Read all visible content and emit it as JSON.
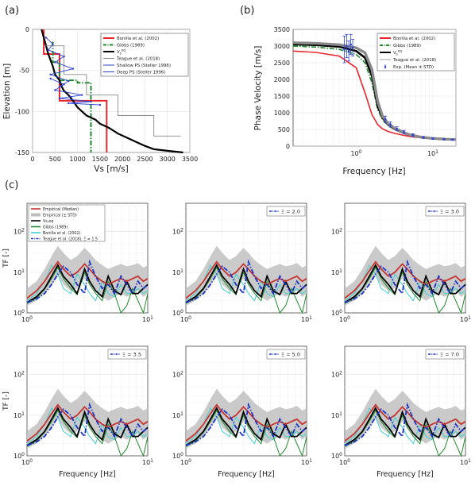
{
  "chart_data": [
    {
      "panel": "(a)",
      "type": "line",
      "xlabel": "Vs [m/s]",
      "ylabel": "Elevation [m]",
      "xlim": [
        0,
        3500
      ],
      "ylim": [
        -150,
        0
      ],
      "xticks": [
        0,
        500,
        1000,
        1500,
        2000,
        2500,
        3000,
        3500
      ],
      "yticks": [
        0,
        -50,
        -100,
        -150
      ],
      "grid": true,
      "legend_position": "top-right",
      "series": [
        {
          "name": "Bonilla et al. (2002)",
          "color": "#e8262b",
          "x": [
            250,
            250,
            600,
            600,
            1300,
            1300,
            1650,
            1650
          ],
          "y": [
            0,
            -30,
            -30,
            -87,
            -87,
            -87,
            -87,
            -150
          ]
        },
        {
          "name": "Gibbs (1989)",
          "color": "#1f8a2e",
          "style": "dashdot",
          "x": [
            450,
            450,
            600,
            600,
            1000,
            1000,
            1300,
            1300
          ],
          "y": [
            -15,
            -40,
            -40,
            -62,
            -62,
            -65,
            -65,
            -150
          ]
        },
        {
          "name": "Vs,eq",
          "color": "#000000",
          "x": [
            200,
            250,
            300,
            350,
            450,
            500,
            600,
            650,
            700,
            800,
            900,
            1000,
            1100,
            1200,
            1400,
            1500,
            1700,
            1900,
            2100,
            2300,
            2500,
            2700,
            3000,
            3350
          ],
          "y": [
            0,
            -10,
            -20,
            -30,
            -45,
            -55,
            -62,
            -70,
            -75,
            -80,
            -87,
            -95,
            -100,
            -105,
            -110,
            -115,
            -120,
            -127,
            -132,
            -137,
            -142,
            -146,
            -148,
            -150
          ]
        },
        {
          "name": "Teague et al. (2018)",
          "color": "#8a8a8a",
          "x": [
            250,
            700,
            700,
            1200,
            1200,
            1900,
            1900,
            2700,
            2700,
            3300
          ],
          "y": [
            -20,
            -20,
            -55,
            -55,
            -80,
            -80,
            -105,
            -105,
            -130,
            -130
          ]
        },
        {
          "name": "Shallow PS (Steller 1996)",
          "color": "#2b3fd1",
          "x": [
            300,
            450,
            350,
            700,
            500,
            900,
            400,
            800,
            600
          ],
          "y": [
            -10,
            -18,
            -25,
            -33,
            -40,
            -48,
            -55,
            -63,
            -70
          ]
        },
        {
          "name": "Deep PS (Steller 1996)",
          "color": "#2b3fd1",
          "x": [
            400,
            700,
            500,
            1100,
            600,
            1300,
            800,
            1500
          ],
          "y": [
            -60,
            -67,
            -74,
            -80,
            -84,
            -88,
            -90,
            -92
          ]
        }
      ]
    },
    {
      "panel": "(b)",
      "type": "line",
      "xlabel": "Frequency [Hz]",
      "ylabel": "Phase Velocity [m/s]",
      "xscale": "log",
      "xlim": [
        0.15,
        20
      ],
      "ylim": [
        0,
        3500
      ],
      "xticks": [
        1,
        10
      ],
      "xticklabels": [
        "10^0",
        "10^1"
      ],
      "yticks": [
        0,
        500,
        1000,
        1500,
        2000,
        2500,
        3000,
        3500
      ],
      "grid": true,
      "legend_position": "top-right",
      "x": [
        0.15,
        0.3,
        0.6,
        1.0,
        1.3,
        1.6,
        1.9,
        2.2,
        2.6,
        3.2,
        4.0,
        5.0,
        7.0,
        10.0,
        15.0,
        20.0
      ],
      "series": [
        {
          "name": "Bonilla et al. (2002)",
          "color": "#e8262b",
          "y": [
            2850,
            2810,
            2700,
            2350,
            1600,
            950,
            650,
            520,
            440,
            380,
            330,
            290,
            250,
            220,
            200,
            190
          ]
        },
        {
          "name": "Gibbs (1989)",
          "color": "#1f8a2e",
          "style": "dashdot",
          "y": [
            3000,
            2970,
            2900,
            2750,
            2500,
            1900,
            1100,
            800,
            620,
            490,
            400,
            320,
            260,
            225,
            205,
            195
          ]
        },
        {
          "name": "Vs,eq",
          "color": "#000000",
          "y": [
            3050,
            3030,
            2980,
            2850,
            2650,
            2100,
            1200,
            850,
            650,
            510,
            410,
            330,
            265,
            228,
            207,
            197
          ]
        },
        {
          "name": "Teague et al. (2018)",
          "color": "#8a8a8a",
          "y": [
            3100,
            3080,
            3040,
            2950,
            2800,
            2300,
            1350,
            900,
            680,
            530,
            425,
            340,
            270,
            230,
            208,
            198
          ]
        },
        {
          "name": "Exp. (Mean ± STD)",
          "color": "#2b3fd1",
          "marker": "errorbar",
          "x": [
            0.7,
            0.75,
            0.8,
            0.85,
            0.9,
            2.4,
            2.8,
            3.4,
            4.2,
            5.5,
            7.5,
            10,
            14,
            18
          ],
          "y": [
            2900,
            3000,
            2850,
            3050,
            2950,
            800,
            650,
            520,
            420,
            330,
            260,
            225,
            205,
            195
          ],
          "err": [
            400,
            350,
            300,
            300,
            250,
            100,
            80,
            60,
            50,
            40,
            30,
            20,
            15,
            10
          ]
        }
      ]
    },
    {
      "panel": "(c)",
      "type": "line",
      "xlabel": "Frequency [Hz]",
      "ylabel": "TF [-]",
      "xscale": "log",
      "yscale": "log",
      "xlim": [
        1,
        10
      ],
      "ylim": [
        1,
        500
      ],
      "xticklabels": [
        "10^0",
        "10^1"
      ],
      "yticklabels": [
        "10^0",
        "10^1",
        "10^2"
      ],
      "grid": true,
      "legend_entries": [
        "Empirical (Median)",
        "Empirical (± STD)",
        "Vs,eq",
        "Gibbs (1989)",
        "Bonilla et al. (2002)",
        "Teague et al. (2018), Ξ = 1.5"
      ],
      "subplots": [
        {
          "xi_label": "Ξ = 1.5",
          "show_full_legend": true
        },
        {
          "xi_label": "Ξ = 2.0"
        },
        {
          "xi_label": "Ξ = 3.0"
        },
        {
          "xi_label": "Ξ = 3.5"
        },
        {
          "xi_label": "Ξ = 5.0"
        },
        {
          "xi_label": "Ξ = 7.0"
        }
      ],
      "x": [
        1.0,
        1.2,
        1.4,
        1.6,
        1.8,
        2.0,
        2.3,
        2.6,
        3.0,
        3.3,
        3.7,
        4.2,
        4.7,
        5.3,
        6.0,
        6.7,
        7.5,
        8.3,
        9.2,
        10.0
      ],
      "series": [
        {
          "name": "Empirical (Median)",
          "color": "#c8342e",
          "y": [
            2.3,
            3.5,
            6,
            11,
            18,
            12,
            8,
            10,
            16,
            12,
            8,
            6,
            5,
            6,
            7,
            6,
            7,
            8,
            6,
            7
          ]
        },
        {
          "name": "Empirical upper (± STD)",
          "color": "#bdbdbd",
          "y": [
            4,
            6,
            12,
            25,
            45,
            30,
            20,
            25,
            40,
            30,
            20,
            15,
            12,
            14,
            16,
            14,
            15,
            17,
            13,
            15
          ]
        },
        {
          "name": "Empirical lower (± STD)",
          "color": "#bdbdbd",
          "y": [
            1.5,
            2,
            3,
            5,
            8,
            5,
            3.5,
            4,
            7,
            5,
            3.5,
            2.5,
            2,
            2.5,
            3,
            2.5,
            3,
            3.5,
            2.5,
            3
          ]
        },
        {
          "name": "Vs,eq",
          "color": "#000000",
          "y": [
            1.8,
            2.5,
            4,
            8,
            15,
            8,
            5,
            3,
            12,
            6,
            3.5,
            2.5,
            8,
            3.5,
            2.8,
            6,
            3,
            3,
            4,
            5
          ]
        },
        {
          "name": "Gibbs (1989)",
          "color": "#1f8a2e",
          "y": [
            1.7,
            2.3,
            3.8,
            7,
            13,
            7,
            4,
            2.8,
            10,
            5,
            3,
            2,
            6,
            3,
            0.6,
            1.5,
            4,
            2,
            0.9,
            3
          ]
        },
        {
          "name": "Bonilla et al. (2002)",
          "color": "#3fd0d0",
          "y": [
            2,
            3,
            6,
            15,
            9,
            4,
            3,
            9,
            5,
            3,
            2,
            6,
            3,
            2.5,
            5,
            3,
            3,
            4,
            3,
            3.5
          ]
        },
        {
          "name": "Teague et al. (2018), Ξ = 1.5",
          "color": "#1b33c9",
          "style": "dashdot",
          "y": [
            1.8,
            2.2,
            3,
            5,
            9,
            14,
            10,
            5,
            3,
            18,
            8,
            4,
            5,
            3,
            8,
            5,
            3,
            6,
            4,
            5
          ]
        }
      ]
    }
  ],
  "panels": {
    "a": {
      "label": "(a)",
      "legend": [
        "Bonilla et al. (2002)",
        "Gibbs (1989)",
        "V",
        "Teague et al. (2018)",
        "Shallow PS (Steller 1996)",
        "Deep PS (Steller 1996)"
      ],
      "vseq_sup": "eq",
      "vseq_sub": "s"
    },
    "b": {
      "label": "(b)",
      "legend": [
        "Bonilla et al. (2002)",
        "Gibbs (1989)",
        "V",
        "Teague et al. (2018)",
        "Exp. (Mean ± STD)"
      ],
      "vseq_sup": "eq",
      "vseq_sub": "s"
    },
    "c": {
      "label": "(c)"
    }
  }
}
